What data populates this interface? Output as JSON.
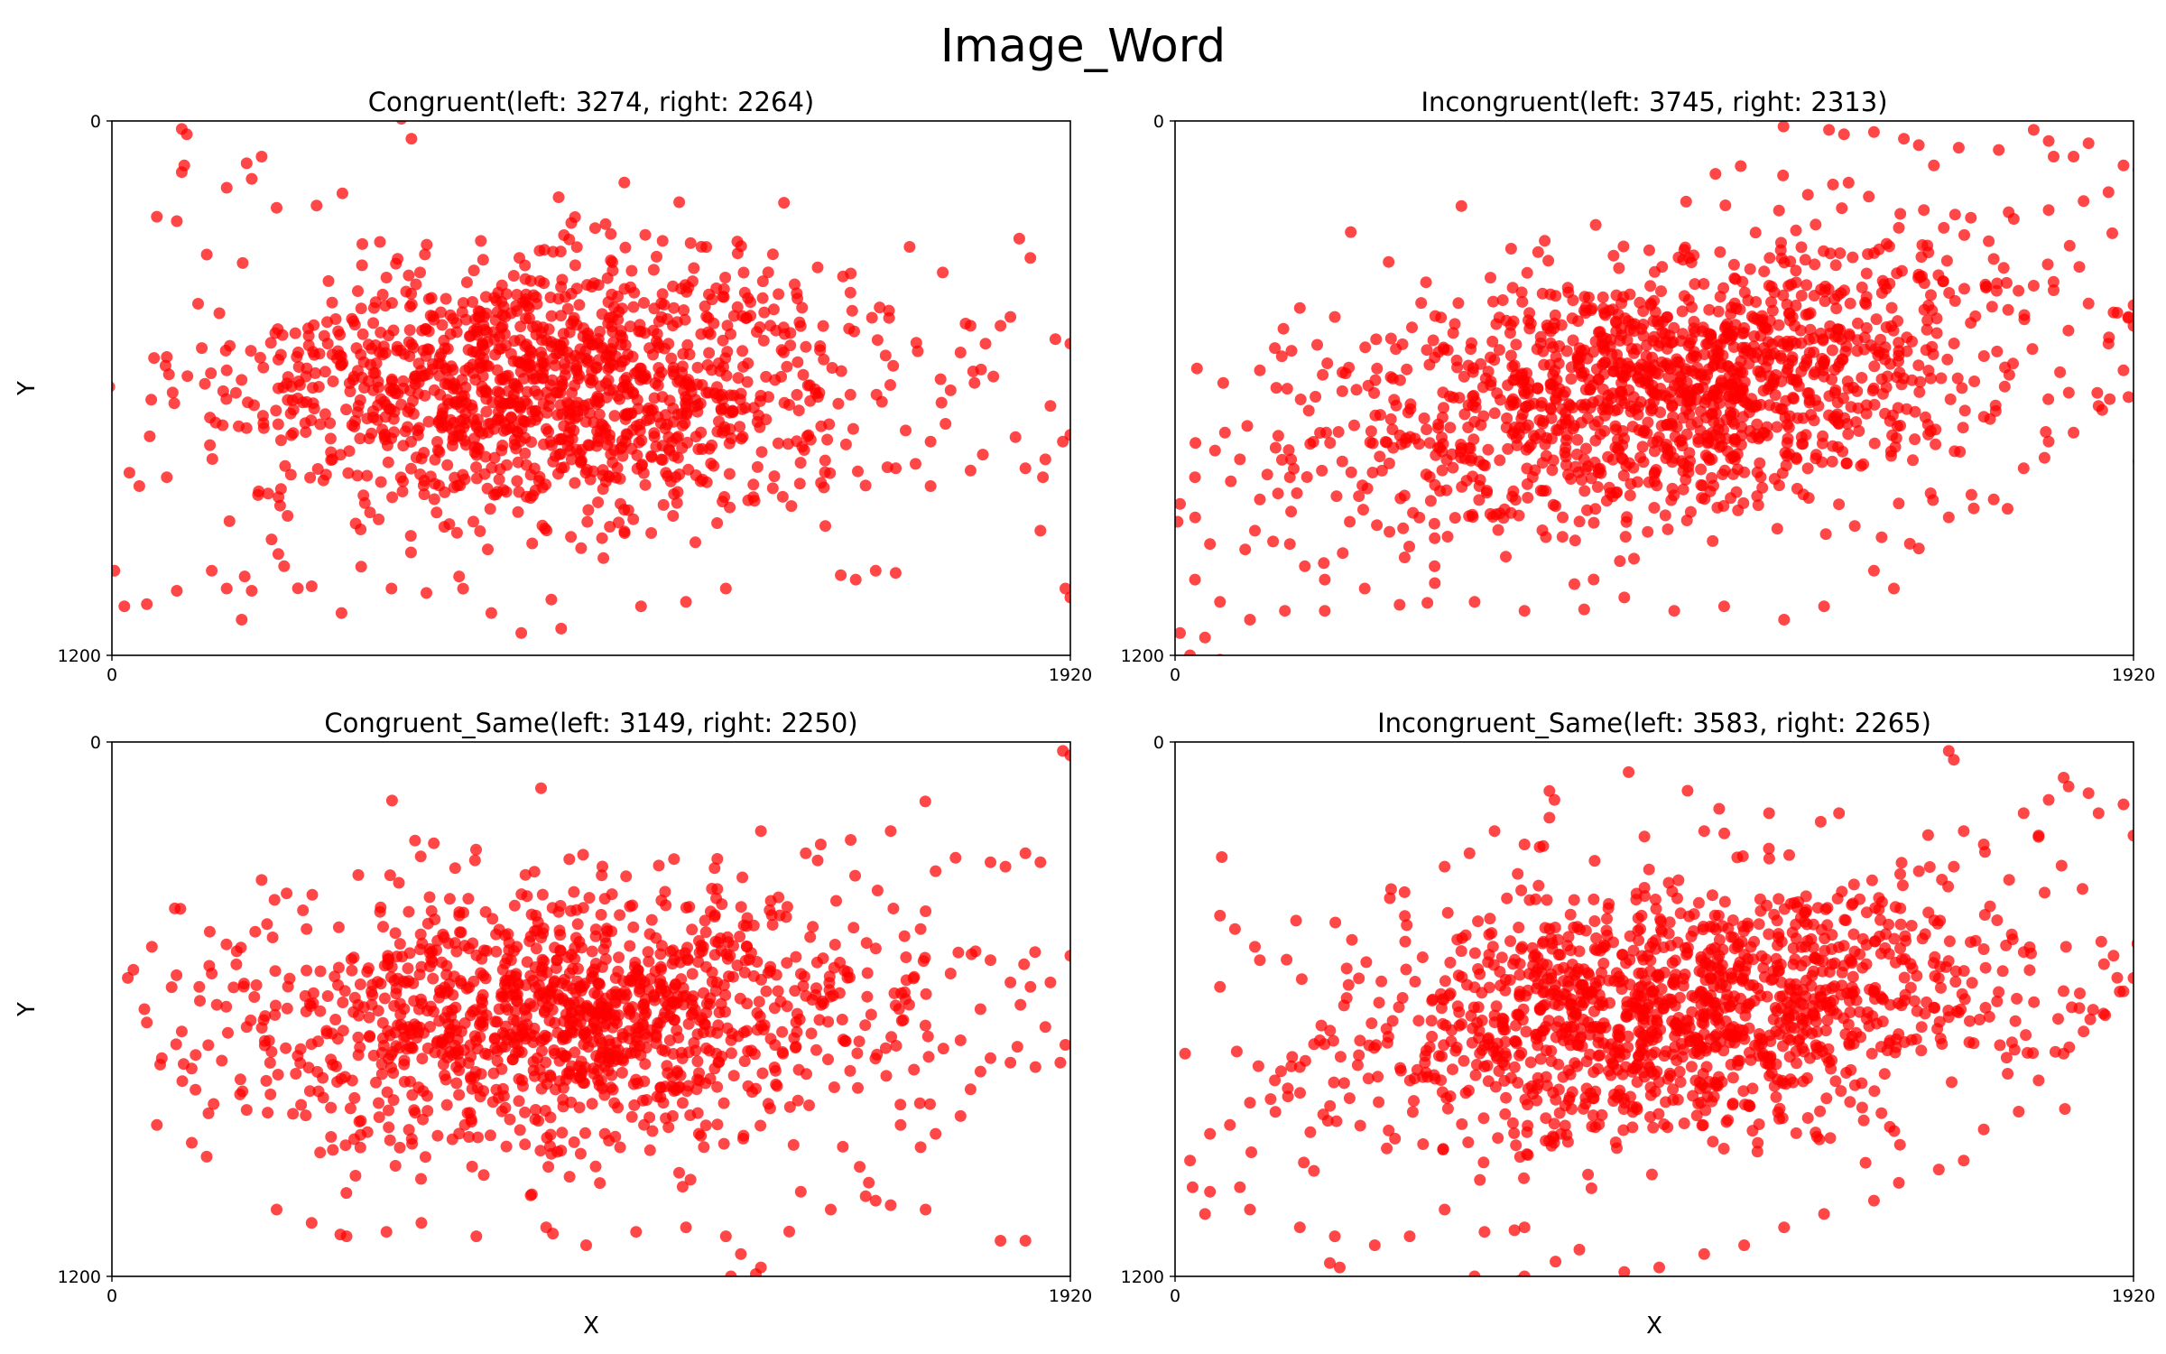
{
  "figure": {
    "title": "Image_Word"
  },
  "chart_data": [
    {
      "type": "scatter",
      "title": "Congruent(left: 3274, right: 2264)",
      "xlabel": "",
      "ylabel": "Y",
      "xlim": [
        0,
        1920
      ],
      "ylim": [
        1200,
        0
      ],
      "xticks": [
        "0",
        "1920"
      ],
      "yticks": [
        "0",
        "1200"
      ],
      "color": "#ff0000",
      "cloud": {
        "cx": 880,
        "cy": 600,
        "sx": 320,
        "sy": 150,
        "rho": -0.05,
        "n": 1300
      },
      "points": [
        [
          140,
          18
        ],
        [
          150,
          30
        ],
        [
          145,
          100
        ],
        [
          140,
          115
        ],
        [
          270,
          95
        ],
        [
          280,
          130
        ],
        [
          300,
          80
        ],
        [
          230,
          150
        ],
        [
          330,
          195
        ],
        [
          410,
          190
        ],
        [
          600,
          40
        ],
        [
          580,
          -5
        ],
        [
          90,
          215
        ],
        [
          130,
          225
        ],
        [
          190,
          300
        ],
        [
          110,
          530
        ],
        [
          180,
          510
        ],
        [
          230,
          560
        ],
        [
          35,
          790
        ],
        [
          55,
          820
        ],
        [
          110,
          800
        ],
        [
          25,
          1090
        ],
        [
          5,
          1010
        ],
        [
          70,
          1085
        ],
        [
          130,
          1055
        ],
        [
          200,
          1010
        ],
        [
          230,
          1050
        ],
        [
          260,
          1120
        ],
        [
          280,
          1055
        ],
        [
          345,
          1000
        ],
        [
          400,
          1045
        ],
        [
          460,
          1105
        ],
        [
          560,
          1050
        ],
        [
          630,
          1060
        ],
        [
          760,
          1105
        ],
        [
          820,
          1150
        ],
        [
          900,
          1140
        ],
        [
          1060,
          1090
        ],
        [
          1150,
          1080
        ],
        [
          1230,
          1050
        ],
        [
          1610,
          770
        ],
        [
          1640,
          820
        ],
        [
          1670,
          680
        ],
        [
          1720,
          785
        ],
        [
          1810,
          710
        ],
        [
          1830,
          780
        ],
        [
          1865,
          800
        ],
        [
          1870,
          760
        ],
        [
          1880,
          640
        ],
        [
          1905,
          720
        ],
        [
          1920,
          705
        ],
        [
          1910,
          1050
        ],
        [
          1920,
          1070
        ],
        [
          1890,
          490
        ],
        [
          1920,
          500
        ],
        [
          1800,
          440
        ],
        [
          1780,
          460
        ],
        [
          1700,
          520
        ],
        [
          1660,
          580
        ],
        [
          1860,
          920
        ],
        [
          1640,
          720
        ],
        [
          1590,
          695
        ],
        [
          1460,
          1020
        ],
        [
          1490,
          1030
        ],
        [
          1530,
          1010
        ],
        [
          1570,
          1015
        ],
        [
          1720,
          460
        ],
        [
          1750,
          500
        ]
      ]
    },
    {
      "type": "scatter",
      "title": "Incongruent(left: 3745, right: 2313)",
      "xlabel": "",
      "ylabel": "",
      "xlim": [
        0,
        1920
      ],
      "ylim": [
        1200,
        0
      ],
      "xticks": [
        "0",
        "1920"
      ],
      "yticks": [
        "0",
        "1200"
      ],
      "color": "#ff0000",
      "cloud": {
        "cx": 980,
        "cy": 600,
        "sx": 350,
        "sy": 160,
        "rho": -0.35,
        "n": 1400
      },
      "points": [
        [
          1310,
          20
        ],
        [
          1340,
          30
        ],
        [
          1400,
          25
        ],
        [
          1460,
          40
        ],
        [
          1520,
          100
        ],
        [
          1570,
          60
        ],
        [
          1650,
          65
        ],
        [
          1720,
          20
        ],
        [
          1750,
          45
        ],
        [
          1760,
          80
        ],
        [
          1800,
          80
        ],
        [
          1830,
          50
        ],
        [
          1900,
          100
        ],
        [
          1930,
          110
        ],
        [
          1870,
          160
        ],
        [
          1820,
          180
        ],
        [
          1750,
          200
        ],
        [
          1680,
          220
        ],
        [
          1630,
          270
        ],
        [
          1540,
          240
        ],
        [
          1500,
          200
        ],
        [
          1450,
          240
        ],
        [
          1640,
          310
        ],
        [
          1660,
          330
        ],
        [
          1720,
          370
        ],
        [
          1760,
          380
        ],
        [
          1830,
          410
        ],
        [
          1880,
          430
        ],
        [
          1910,
          440
        ],
        [
          1920,
          460
        ],
        [
          1870,
          500
        ],
        [
          1900,
          560
        ],
        [
          1910,
          620
        ],
        [
          1850,
          640
        ],
        [
          1800,
          700
        ],
        [
          1750,
          720
        ],
        [
          1700,
          780
        ],
        [
          1640,
          850
        ],
        [
          1600,
          870
        ],
        [
          1550,
          890
        ],
        [
          1490,
          960
        ],
        [
          1440,
          1050
        ],
        [
          1400,
          1010
        ],
        [
          1300,
          1090
        ],
        [
          1220,
          1120
        ],
        [
          1100,
          1090
        ],
        [
          1000,
          1100
        ],
        [
          900,
          1070
        ],
        [
          800,
          1040
        ],
        [
          700,
          1100
        ],
        [
          600,
          1080
        ],
        [
          520,
          1000
        ],
        [
          460,
          980
        ],
        [
          380,
          1050
        ],
        [
          300,
          1030
        ],
        [
          220,
          1100
        ],
        [
          150,
          1120
        ],
        [
          90,
          1080
        ],
        [
          60,
          1160
        ],
        [
          10,
          1150
        ],
        [
          30,
          1200
        ],
        [
          90,
          1210
        ],
        [
          5,
          900
        ],
        [
          10,
          860
        ],
        [
          40,
          800
        ],
        [
          80,
          740
        ],
        [
          100,
          700
        ],
        [
          130,
          760
        ],
        [
          170,
          850
        ],
        [
          160,
          920
        ],
        [
          230,
          950
        ],
        [
          260,
          1000
        ],
        [
          300,
          1100
        ],
        [
          350,
          900
        ],
        [
          40,
          1030
        ],
        [
          70,
          950
        ],
        [
          230,
          800
        ],
        [
          250,
          420
        ],
        [
          320,
          440
        ],
        [
          200,
          510
        ],
        [
          170,
          560
        ]
      ]
    },
    {
      "type": "scatter",
      "title": "Congruent_Same(left: 3149, right: 2250)",
      "xlabel": "X",
      "ylabel": "Y",
      "xlim": [
        0,
        1920
      ],
      "ylim": [
        1200,
        0
      ],
      "xticks": [
        "0",
        "1920"
      ],
      "yticks": [
        "0",
        "1200"
      ],
      "color": "#ff0000",
      "cloud": {
        "cx": 900,
        "cy": 620,
        "sx": 330,
        "sy": 150,
        "rho": -0.05,
        "n": 1250
      },
      "points": [
        [
          1905,
          20
        ],
        [
          1920,
          30
        ],
        [
          1920,
          480
        ],
        [
          1880,
          540
        ],
        [
          1840,
          550
        ],
        [
          1800,
          540
        ],
        [
          1760,
          490
        ],
        [
          1730,
          470
        ],
        [
          1820,
          590
        ],
        [
          1870,
          640
        ],
        [
          1910,
          680
        ],
        [
          1900,
          720
        ],
        [
          1850,
          730
        ],
        [
          1800,
          720
        ],
        [
          1760,
          710
        ],
        [
          1740,
          600
        ],
        [
          1700,
          670
        ],
        [
          1680,
          520
        ],
        [
          1620,
          420
        ],
        [
          1630,
          380
        ],
        [
          1650,
          290
        ],
        [
          1690,
          260
        ],
        [
          1760,
          270
        ],
        [
          1790,
          280
        ],
        [
          1830,
          250
        ],
        [
          1860,
          270
        ],
        [
          1560,
          200
        ],
        [
          1480,
          220
        ],
        [
          1420,
          230
        ],
        [
          1390,
          250
        ],
        [
          1300,
          200
        ],
        [
          80,
          460
        ],
        [
          65,
          600
        ],
        [
          70,
          630
        ],
        [
          140,
          650
        ],
        [
          100,
          710
        ],
        [
          175,
          550
        ],
        [
          200,
          520
        ],
        [
          90,
          860
        ],
        [
          160,
          900
        ],
        [
          330,
          1050
        ],
        [
          400,
          1080
        ],
        [
          470,
          1110
        ],
        [
          550,
          1100
        ],
        [
          620,
          1080
        ],
        [
          730,
          1110
        ],
        [
          870,
          1090
        ],
        [
          950,
          1130
        ],
        [
          1050,
          1100
        ],
        [
          1150,
          1090
        ],
        [
          1230,
          1110
        ],
        [
          1260,
          1150
        ],
        [
          1300,
          1180
        ],
        [
          1290,
          1195
        ],
        [
          1240,
          1200
        ],
        [
          1380,
          1010
        ],
        [
          1440,
          1050
        ],
        [
          1510,
          1020
        ],
        [
          1530,
          1030
        ],
        [
          1560,
          1040
        ],
        [
          1630,
          1050
        ],
        [
          1780,
          1120
        ],
        [
          1830,
          1120
        ],
        [
          300,
          310
        ],
        [
          350,
          340
        ],
        [
          390,
          420
        ],
        [
          250,
          470
        ],
        [
          210,
          590
        ],
        [
          270,
          640
        ],
        [
          1740,
          740
        ],
        [
          1720,
          780
        ],
        [
          1700,
          840
        ],
        [
          1650,
          880
        ],
        [
          1620,
          910
        ],
        [
          1580,
          860
        ]
      ]
    },
    {
      "type": "scatter",
      "title": "Incongruent_Same(left: 3583, right: 2265)",
      "xlabel": "X",
      "ylabel": "",
      "xlim": [
        0,
        1920
      ],
      "ylim": [
        1200,
        0
      ],
      "xticks": [
        "0",
        "1920"
      ],
      "yticks": [
        "0",
        "1200"
      ],
      "color": "#ff0000",
      "cloud": {
        "cx": 990,
        "cy": 600,
        "sx": 340,
        "sy": 150,
        "rho": -0.25,
        "n": 1350
      },
      "points": [
        [
          1560,
          40
        ],
        [
          1550,
          20
        ],
        [
          1780,
          80
        ],
        [
          1790,
          100
        ],
        [
          1830,
          115
        ],
        [
          1850,
          160
        ],
        [
          1900,
          140
        ],
        [
          1920,
          210
        ],
        [
          1730,
          210
        ],
        [
          1750,
          130
        ],
        [
          1700,
          160
        ],
        [
          1620,
          230
        ],
        [
          1580,
          200
        ],
        [
          1560,
          280
        ],
        [
          1490,
          290
        ],
        [
          1410,
          350
        ],
        [
          1360,
          320
        ],
        [
          1330,
          160
        ],
        [
          1190,
          160
        ],
        [
          1090,
          150
        ],
        [
          1060,
          200
        ],
        [
          750,
          110
        ],
        [
          760,
          130
        ],
        [
          750,
          170
        ],
        [
          700,
          230
        ],
        [
          640,
          200
        ],
        [
          590,
          250
        ],
        [
          540,
          280
        ],
        [
          1880,
          480
        ],
        [
          1900,
          560
        ],
        [
          1920,
          530
        ],
        [
          1860,
          610
        ],
        [
          1820,
          650
        ],
        [
          1780,
          700
        ],
        [
          1730,
          760
        ],
        [
          1690,
          830
        ],
        [
          1620,
          870
        ],
        [
          1580,
          940
        ],
        [
          1530,
          960
        ],
        [
          1450,
          990
        ],
        [
          1400,
          1030
        ],
        [
          1300,
          1060
        ],
        [
          1220,
          1090
        ],
        [
          1140,
          1130
        ],
        [
          1060,
          1150
        ],
        [
          970,
          1180
        ],
        [
          900,
          1190
        ],
        [
          810,
          1140
        ],
        [
          700,
          1090
        ],
        [
          620,
          1100
        ],
        [
          540,
          1050
        ],
        [
          470,
          1110
        ],
        [
          400,
          1130
        ],
        [
          320,
          1110
        ],
        [
          250,
          1090
        ],
        [
          150,
          1050
        ],
        [
          130,
          1000
        ],
        [
          70,
          1010
        ],
        [
          60,
          1060
        ],
        [
          35,
          1000
        ],
        [
          30,
          940
        ],
        [
          70,
          880
        ],
        [
          110,
          860
        ],
        [
          150,
          810
        ],
        [
          200,
          760
        ],
        [
          250,
          730
        ],
        [
          290,
          670
        ],
        [
          20,
          700
        ],
        [
          90,
          550
        ],
        [
          170,
          490
        ],
        [
          160,
          460
        ],
        [
          120,
          420
        ],
        [
          90,
          390
        ],
        [
          310,
          1170
        ],
        [
          330,
          1180
        ],
        [
          700,
          1200
        ],
        [
          690,
          1210
        ],
        [
          600,
          1200
        ]
      ]
    }
  ]
}
